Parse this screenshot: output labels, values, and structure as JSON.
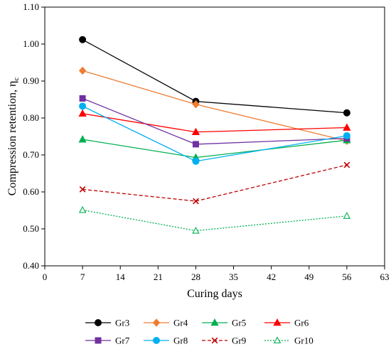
{
  "chart_data": {
    "type": "line",
    "xlabel": "Curing days",
    "ylabel": "Compression  retention, η",
    "ylabel_subscript": "c",
    "xlim": [
      0,
      63
    ],
    "ylim": [
      0.4,
      1.1
    ],
    "x_ticks": [
      "0",
      "7",
      "14",
      "21",
      "28",
      "35",
      "42",
      "49",
      "56",
      "63"
    ],
    "y_ticks": [
      "0.40",
      "0.50",
      "0.60",
      "0.70",
      "0.80",
      "0.90",
      "1.00",
      "1.10"
    ],
    "grid": false,
    "legend_position": "bottom",
    "x": [
      7,
      28,
      56
    ],
    "series": [
      {
        "name": "Gr3",
        "values": [
          1.012,
          0.845,
          0.814
        ],
        "color": "#000000",
        "marker": "circle",
        "dash": "solid"
      },
      {
        "name": "Gr4",
        "values": [
          0.928,
          0.837,
          0.738
        ],
        "color": "#ED7D31",
        "marker": "diamond",
        "dash": "solid"
      },
      {
        "name": "Gr5",
        "values": [
          0.742,
          0.693,
          0.74
        ],
        "color": "#00B050",
        "marker": "triangle",
        "dash": "solid"
      },
      {
        "name": "Gr6",
        "values": [
          0.812,
          0.762,
          0.774
        ],
        "color": "#FF0000",
        "marker": "triangle",
        "dash": "solid"
      },
      {
        "name": "Gr7",
        "values": [
          0.853,
          0.729,
          0.745
        ],
        "color": "#7030A0",
        "marker": "square",
        "dash": "solid"
      },
      {
        "name": "Gr8",
        "values": [
          0.832,
          0.683,
          0.752
        ],
        "color": "#00B0F0",
        "marker": "circle",
        "dash": "solid"
      },
      {
        "name": "Gr9",
        "values": [
          0.607,
          0.575,
          0.673
        ],
        "color": "#C00000",
        "marker": "x",
        "dash": "dashed"
      },
      {
        "name": "Gr10",
        "values": [
          0.551,
          0.495,
          0.535
        ],
        "color": "#00B050",
        "marker": "triangle-open",
        "dash": "dotted"
      }
    ]
  }
}
